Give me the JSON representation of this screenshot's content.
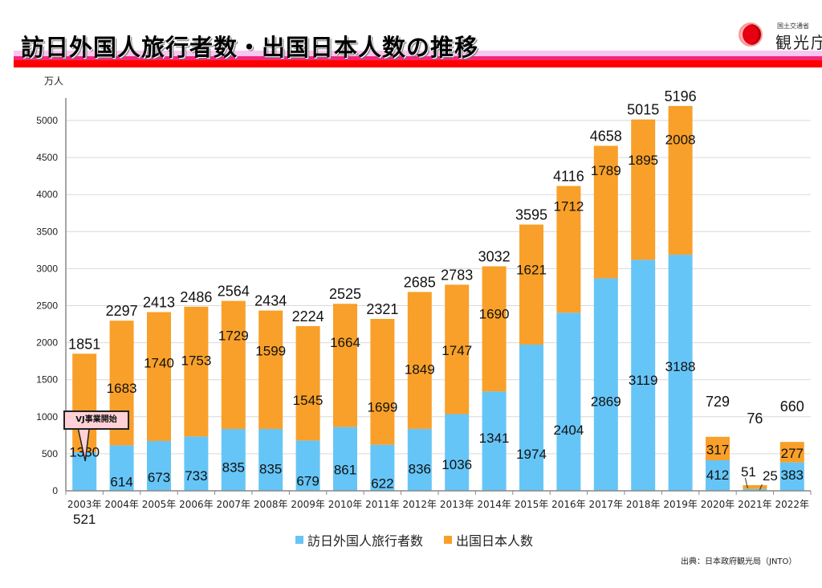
{
  "header": {
    "title": "訪日外国人旅行者数・出国日本人数の推移",
    "logo_small": "国土交通省",
    "logo_big": "観光庁"
  },
  "colors": {
    "inbound": "#66c5f7",
    "outbound": "#f8a029",
    "grid": "#d9d9d9",
    "axis": "#888888"
  },
  "unit_label": "万人",
  "callout": "VJ事業開始",
  "source": "出典：日本政府観光局（JNTO）",
  "chart_data": {
    "type": "bar",
    "stacked": true,
    "title": "訪日外国人旅行者数・出国日本人数の推移",
    "xlabel": "",
    "ylabel": "万人",
    "ylim": [
      0,
      5000
    ],
    "yticks": [
      0,
      500,
      1000,
      1500,
      2000,
      2500,
      3000,
      3500,
      4000,
      4500,
      5000
    ],
    "grid": true,
    "legend_position": "bottom",
    "categories": [
      "2003年",
      "2004年",
      "2005年",
      "2006年",
      "2007年",
      "2008年",
      "2009年",
      "2010年",
      "2011年",
      "2012年",
      "2013年",
      "2014年",
      "2015年",
      "2016年",
      "2017年",
      "2018年",
      "2019年",
      "2020年",
      "2021年",
      "2022年"
    ],
    "series": [
      {
        "name": "訪日外国人旅行者数",
        "values": [
          521,
          614,
          673,
          733,
          835,
          835,
          679,
          861,
          622,
          836,
          1036,
          1341,
          1974,
          2404,
          2869,
          3119,
          3188,
          412,
          25,
          383
        ]
      },
      {
        "name": "出国日本人数",
        "values": [
          1330,
          1683,
          1740,
          1753,
          1729,
          1599,
          1545,
          1664,
          1699,
          1849,
          1747,
          1690,
          1621,
          1712,
          1789,
          1895,
          2008,
          317,
          51,
          277
        ]
      }
    ],
    "totals": [
      1851,
      2297,
      2413,
      2486,
      2564,
      2434,
      2224,
      2525,
      2321,
      2685,
      2783,
      3032,
      3595,
      4116,
      4658,
      5015,
      5196,
      729,
      76,
      660
    ],
    "annotations": [
      {
        "text": "VJ事業開始",
        "category": "2003年"
      }
    ]
  }
}
